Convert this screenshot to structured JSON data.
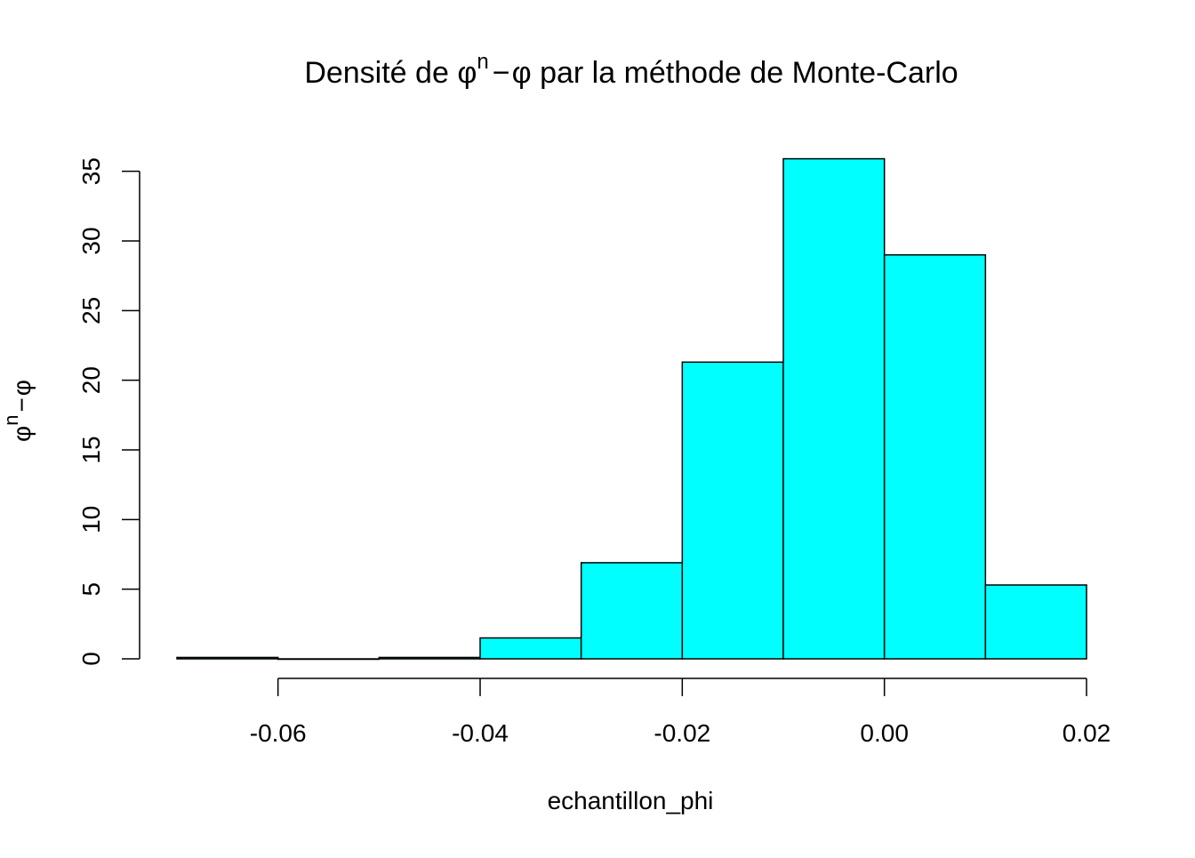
{
  "chart_data": {
    "type": "bar",
    "title": {
      "prefix": "Densité de ",
      "phi": "φ",
      "sup": "n",
      "minus": "−",
      "suffix": " par la méthode de Monte-Carlo"
    },
    "xlabel": "echantillon_phi",
    "ylabel": {
      "phi": "φ",
      "sup": "n",
      "minus": "−"
    },
    "bins": [
      {
        "x0": -0.07,
        "x1": -0.06,
        "value": 0.1
      },
      {
        "x0": -0.06,
        "x1": -0.05,
        "value": 0.0
      },
      {
        "x0": -0.05,
        "x1": -0.04,
        "value": 0.1
      },
      {
        "x0": -0.04,
        "x1": -0.03,
        "value": 1.5
      },
      {
        "x0": -0.03,
        "x1": -0.02,
        "value": 6.9
      },
      {
        "x0": -0.02,
        "x1": -0.01,
        "value": 21.3
      },
      {
        "x0": -0.01,
        "x1": 0.0,
        "value": 35.9
      },
      {
        "x0": 0.0,
        "x1": 0.01,
        "value": 29.0
      },
      {
        "x0": 0.01,
        "x1": 0.02,
        "value": 5.3
      }
    ],
    "xlim": [
      -0.07,
      0.02
    ],
    "ylim": [
      0,
      36
    ],
    "x_ticks": [
      {
        "value": -0.06,
        "label": "-0.06"
      },
      {
        "value": -0.04,
        "label": "-0.04"
      },
      {
        "value": -0.02,
        "label": "-0.02"
      },
      {
        "value": 0.0,
        "label": "0.00"
      },
      {
        "value": 0.02,
        "label": "0.02"
      }
    ],
    "y_ticks": [
      {
        "value": 0,
        "label": "0"
      },
      {
        "value": 5,
        "label": "5"
      },
      {
        "value": 10,
        "label": "10"
      },
      {
        "value": 15,
        "label": "15"
      },
      {
        "value": 20,
        "label": "20"
      },
      {
        "value": 25,
        "label": "25"
      },
      {
        "value": 30,
        "label": "30"
      },
      {
        "value": 35,
        "label": "35"
      }
    ],
    "bar_color": "#00ffff",
    "edge_color": "#000000",
    "grid": false,
    "legend": "none"
  }
}
